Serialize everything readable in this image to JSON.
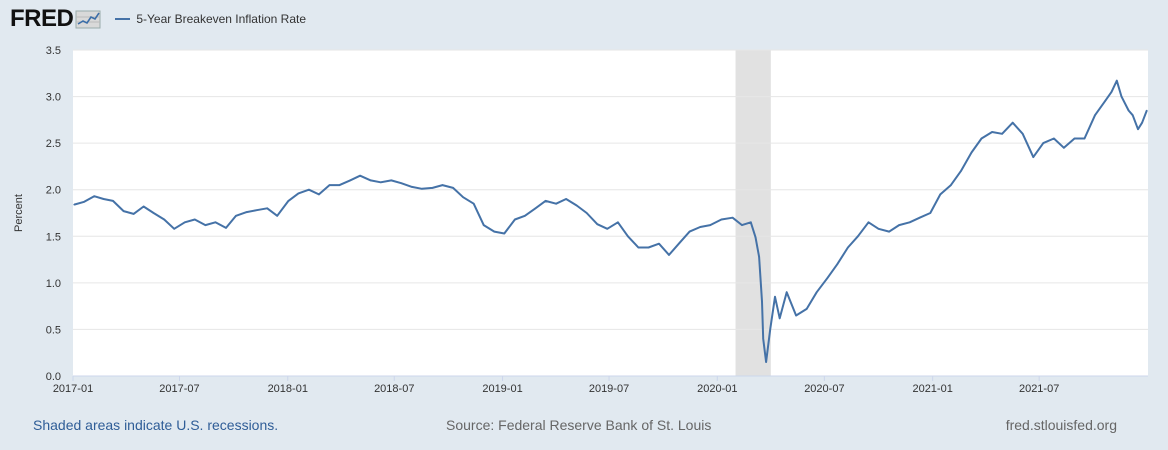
{
  "header": {
    "logo_text": "FRED",
    "logo_icon": "fred-chart-line-icon"
  },
  "colors": {
    "page_background": "#e1e9f0",
    "plot_background": "#ffffff",
    "series": "#4572a7",
    "recession_shade": "#e1e1e1",
    "gridline": "#e6e6e6"
  },
  "chart_data": {
    "type": "line",
    "title": "",
    "xlabel": "",
    "ylabel": "Percent",
    "ylim": [
      0,
      3.5
    ],
    "yticks": [
      "0.0",
      "0.5",
      "1.0",
      "1.5",
      "2.0",
      "2.5",
      "3.0",
      "3.5"
    ],
    "xticks": [
      "2017-01",
      "2017-07",
      "2018-01",
      "2018-07",
      "2019-01",
      "2019-07",
      "2020-01",
      "2020-07",
      "2021-01",
      "2021-07"
    ],
    "grid": "horizontal",
    "legend": "top-left",
    "recessions": [
      {
        "start": "2020-02",
        "end": "2020-04"
      }
    ],
    "series": [
      {
        "name": "5-Year Breakeven Inflation Rate",
        "x": [
          "2017-01-03",
          "2017-01-20",
          "2017-02-06",
          "2017-02-22",
          "2017-03-10",
          "2017-03-28",
          "2017-04-14",
          "2017-05-01",
          "2017-05-18",
          "2017-06-05",
          "2017-06-22",
          "2017-07-10",
          "2017-07-27",
          "2017-08-14",
          "2017-08-31",
          "2017-09-18",
          "2017-10-05",
          "2017-10-23",
          "2017-11-09",
          "2017-11-27",
          "2017-12-14",
          "2018-01-02",
          "2018-01-19",
          "2018-02-06",
          "2018-02-23",
          "2018-03-13",
          "2018-03-30",
          "2018-04-17",
          "2018-05-04",
          "2018-05-22",
          "2018-06-08",
          "2018-06-26",
          "2018-07-13",
          "2018-07-31",
          "2018-08-17",
          "2018-09-04",
          "2018-09-21",
          "2018-10-09",
          "2018-10-26",
          "2018-11-13",
          "2018-11-30",
          "2018-12-18",
          "2019-01-04",
          "2019-01-22",
          "2019-02-08",
          "2019-02-26",
          "2019-03-15",
          "2019-04-02",
          "2019-04-19",
          "2019-05-07",
          "2019-05-24",
          "2019-06-11",
          "2019-06-28",
          "2019-07-16",
          "2019-08-02",
          "2019-08-20",
          "2019-09-06",
          "2019-09-24",
          "2019-10-11",
          "2019-10-29",
          "2019-11-15",
          "2019-12-03",
          "2019-12-20",
          "2020-01-08",
          "2020-01-27",
          "2020-02-12",
          "2020-02-27",
          "2020-03-06",
          "2020-03-12",
          "2020-03-17",
          "2020-03-19",
          "2020-03-24",
          "2020-03-31",
          "2020-04-08",
          "2020-04-16",
          "2020-04-28",
          "2020-05-14",
          "2020-06-01",
          "2020-06-18",
          "2020-07-06",
          "2020-07-23",
          "2020-08-10",
          "2020-08-27",
          "2020-09-14",
          "2020-10-01",
          "2020-10-19",
          "2020-11-05",
          "2020-11-23",
          "2020-12-10",
          "2020-12-28",
          "2021-01-14",
          "2021-02-01",
          "2021-02-18",
          "2021-03-08",
          "2021-03-25",
          "2021-04-12",
          "2021-04-29",
          "2021-05-17",
          "2021-06-03",
          "2021-06-21",
          "2021-07-08",
          "2021-07-26",
          "2021-08-12",
          "2021-08-30",
          "2021-09-16",
          "2021-10-04",
          "2021-10-21",
          "2021-11-01",
          "2021-11-10",
          "2021-11-18",
          "2021-11-30",
          "2021-12-07",
          "2021-12-16",
          "2021-12-23",
          "2021-12-31"
        ],
        "values": [
          1.84,
          1.87,
          1.93,
          1.9,
          1.88,
          1.77,
          1.74,
          1.82,
          1.75,
          1.68,
          1.58,
          1.65,
          1.68,
          1.62,
          1.65,
          1.59,
          1.72,
          1.76,
          1.78,
          1.8,
          1.72,
          1.88,
          1.96,
          2.0,
          1.95,
          2.05,
          2.05,
          2.1,
          2.15,
          2.1,
          2.08,
          2.1,
          2.07,
          2.03,
          2.01,
          2.02,
          2.05,
          2.02,
          1.92,
          1.85,
          1.62,
          1.55,
          1.53,
          1.68,
          1.72,
          1.8,
          1.88,
          1.85,
          1.9,
          1.83,
          1.75,
          1.63,
          1.58,
          1.65,
          1.5,
          1.38,
          1.38,
          1.42,
          1.3,
          1.43,
          1.55,
          1.6,
          1.62,
          1.68,
          1.7,
          1.62,
          1.65,
          1.49,
          1.28,
          0.8,
          0.4,
          0.15,
          0.5,
          0.85,
          0.62,
          0.9,
          0.65,
          0.72,
          0.9,
          1.05,
          1.2,
          1.38,
          1.5,
          1.65,
          1.58,
          1.55,
          1.62,
          1.65,
          1.7,
          1.75,
          1.95,
          2.05,
          2.2,
          2.4,
          2.55,
          2.62,
          2.6,
          2.72,
          2.6,
          2.35,
          2.5,
          2.55,
          2.45,
          2.55,
          2.55,
          2.8,
          2.95,
          3.05,
          3.17,
          3.0,
          2.85,
          2.8,
          2.65,
          2.72,
          2.85
        ]
      }
    ]
  },
  "footer": {
    "recession_note": "Shaded areas indicate U.S. recessions.",
    "source": "Source: Federal Reserve Bank of St. Louis",
    "site": "fred.stlouisfed.org"
  }
}
